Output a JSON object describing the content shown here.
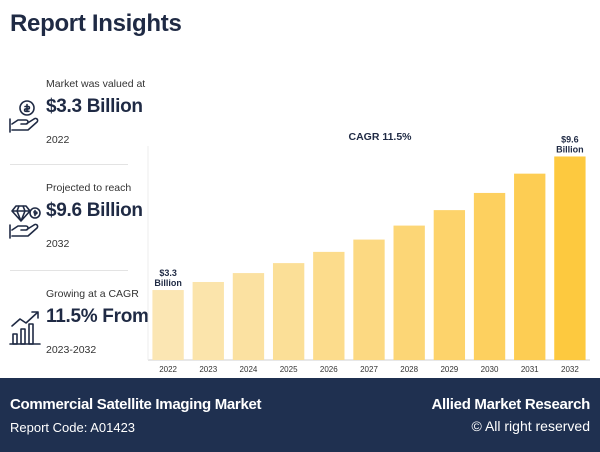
{
  "header": {
    "title": "Report Insights"
  },
  "stats": [
    {
      "label": "Market was valued at",
      "value": "$3.3 Billion",
      "period": "2022",
      "icon": "money-hand-icon"
    },
    {
      "label": "Projected to reach",
      "value": "$9.6 Billion",
      "period": "2032",
      "icon": "diamond-hand-icon"
    },
    {
      "label": "Growing at a CAGR",
      "value": "11.5% From",
      "period": "2023-2032",
      "icon": "growth-chart-icon"
    }
  ],
  "chart_data": {
    "type": "bar",
    "categories": [
      "2022",
      "2023",
      "2024",
      "2025",
      "2026",
      "2027",
      "2028",
      "2029",
      "2030",
      "2031",
      "2032"
    ],
    "values": [
      3.3,
      3.68,
      4.1,
      4.57,
      5.1,
      5.68,
      6.34,
      7.07,
      7.88,
      8.79,
      9.6
    ],
    "annotation": "CAGR 11.5%",
    "first_label": [
      "$3.3",
      "Billion"
    ],
    "last_label": [
      "$9.6",
      "Billion"
    ],
    "ylim": [
      0,
      10
    ],
    "grid": false,
    "colors": [
      "#fbe6b3",
      "#fbe4ab",
      "#fbe1a1",
      "#fbdf97",
      "#fcdc8c",
      "#fcd982",
      "#fcd676",
      "#fdd36b",
      "#fdd05f",
      "#fdcd53",
      "#fdc93f"
    ]
  },
  "footer": {
    "market": "Commercial Satellite Imaging Market",
    "code": "Report Code: A01423",
    "brand": "Allied Market Research",
    "rights": "© All right reserved"
  }
}
